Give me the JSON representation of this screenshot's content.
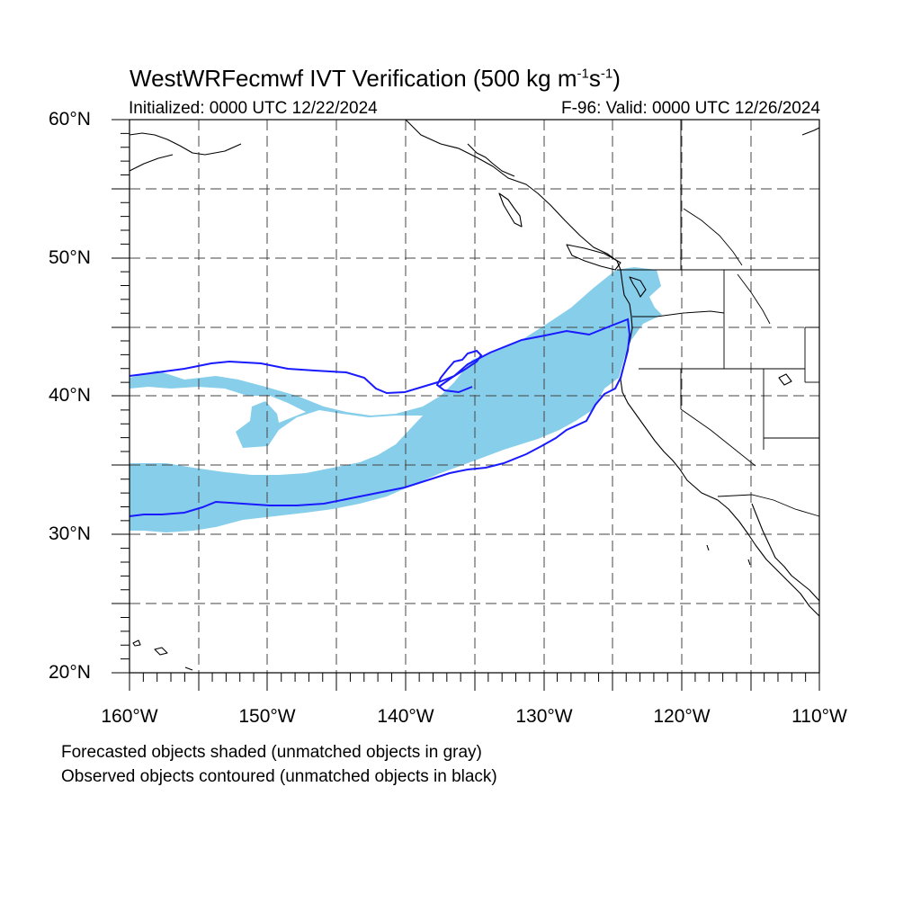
{
  "title": {
    "main": "WestWRFecmwf IVT Verification (500 kg m",
    "exp1": "-1",
    "mid": "s",
    "exp2": "-1",
    "close": ")"
  },
  "initialized": "Initialized: 0000 UTC 12/22/2024",
  "valid": "F-96: Valid: 0000 UTC 12/26/2024",
  "lat_labels": [
    "60°N",
    "50°N",
    "40°N",
    "30°N",
    "20°N"
  ],
  "lon_labels": [
    "160°W",
    "150°W",
    "140°W",
    "130°W",
    "120°W",
    "110°W"
  ],
  "notes": [
    "Forecasted objects shaded (unmatched objects in gray)",
    "Observed objects contoured (unmatched objects in black)"
  ],
  "map": {
    "lon_range": [
      -160,
      -110
    ],
    "lat_range": [
      20,
      60
    ],
    "grid_spacing_deg": 5,
    "grid_style": "dashed",
    "forecast_fill_color": "#87ceeb",
    "observed_contour_color": "#1a1aff",
    "coastline_color": "#000000"
  }
}
